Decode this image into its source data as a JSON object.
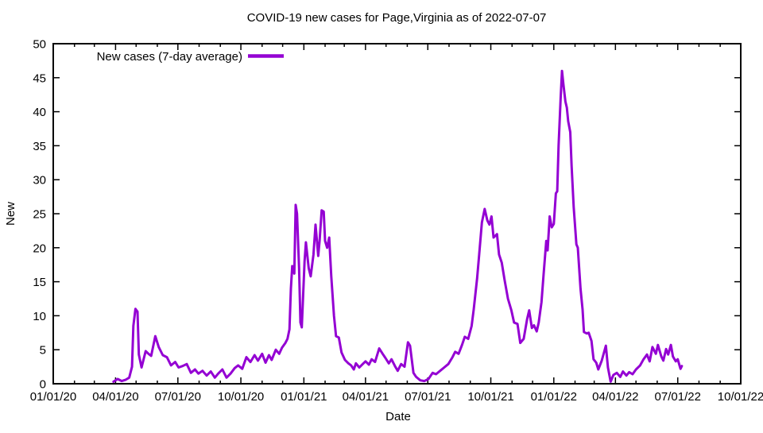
{
  "chart_data": {
    "type": "line",
    "title": "COVID-19 new cases for Page,Virginia as of 2022-07-07",
    "xlabel": "Date",
    "ylabel": "New",
    "x_range": [
      "2020-01-01",
      "2022-10-01"
    ],
    "ylim": [
      0,
      50
    ],
    "yticks": [
      0,
      5,
      10,
      15,
      20,
      25,
      30,
      35,
      40,
      45,
      50
    ],
    "xticks": [
      "01/01/20",
      "04/01/20",
      "07/01/20",
      "10/01/20",
      "01/01/21",
      "04/01/21",
      "07/01/21",
      "10/01/21",
      "01/01/22",
      "04/01/22",
      "07/01/22",
      "10/01/22"
    ],
    "grid": false,
    "legend_position": "top-left-inside",
    "border_color": "#000000",
    "series": [
      {
        "name": "New cases (7-day average)",
        "color": "#9400d3",
        "points": [
          [
            "2020-03-29",
            0.3
          ],
          [
            "2020-04-04",
            0.7
          ],
          [
            "2020-04-10",
            0.4
          ],
          [
            "2020-04-16",
            0.6
          ],
          [
            "2020-04-21",
            0.9
          ],
          [
            "2020-04-25",
            2.5
          ],
          [
            "2020-04-27",
            8.5
          ],
          [
            "2020-04-30",
            11.0
          ],
          [
            "2020-05-03",
            10.6
          ],
          [
            "2020-05-05",
            4.3
          ],
          [
            "2020-05-09",
            2.4
          ],
          [
            "2020-05-15",
            4.8
          ],
          [
            "2020-05-19",
            4.4
          ],
          [
            "2020-05-23",
            4.1
          ],
          [
            "2020-05-29",
            7.0
          ],
          [
            "2020-06-03",
            5.4
          ],
          [
            "2020-06-09",
            4.2
          ],
          [
            "2020-06-15",
            3.9
          ],
          [
            "2020-06-21",
            2.7
          ],
          [
            "2020-06-27",
            3.2
          ],
          [
            "2020-07-02",
            2.4
          ],
          [
            "2020-07-08",
            2.6
          ],
          [
            "2020-07-14",
            2.9
          ],
          [
            "2020-07-20",
            1.6
          ],
          [
            "2020-07-26",
            2.1
          ],
          [
            "2020-07-31",
            1.5
          ],
          [
            "2020-08-06",
            1.9
          ],
          [
            "2020-08-12",
            1.2
          ],
          [
            "2020-08-18",
            1.8
          ],
          [
            "2020-08-24",
            0.9
          ],
          [
            "2020-08-29",
            1.5
          ],
          [
            "2020-09-04",
            2.1
          ],
          [
            "2020-09-10",
            0.9
          ],
          [
            "2020-09-16",
            1.5
          ],
          [
            "2020-09-22",
            2.3
          ],
          [
            "2020-09-27",
            2.7
          ],
          [
            "2020-10-03",
            2.2
          ],
          [
            "2020-10-09",
            3.9
          ],
          [
            "2020-10-15",
            3.2
          ],
          [
            "2020-10-21",
            4.2
          ],
          [
            "2020-10-26",
            3.4
          ],
          [
            "2020-11-01",
            4.4
          ],
          [
            "2020-11-06",
            3.1
          ],
          [
            "2020-11-11",
            4.2
          ],
          [
            "2020-11-15",
            3.5
          ],
          [
            "2020-11-21",
            5.0
          ],
          [
            "2020-11-26",
            4.4
          ],
          [
            "2020-11-30",
            5.3
          ],
          [
            "2020-12-05",
            6.0
          ],
          [
            "2020-12-08",
            6.6
          ],
          [
            "2020-12-11",
            8.0
          ],
          [
            "2020-12-13",
            14.0
          ],
          [
            "2020-12-15",
            17.3
          ],
          [
            "2020-12-18",
            16.2
          ],
          [
            "2020-12-20",
            26.3
          ],
          [
            "2020-12-22",
            25.0
          ],
          [
            "2020-12-25",
            17.0
          ],
          [
            "2020-12-27",
            9.0
          ],
          [
            "2020-12-29",
            8.3
          ],
          [
            "2021-01-02",
            18.0
          ],
          [
            "2021-01-04",
            20.8
          ],
          [
            "2021-01-08",
            17.0
          ],
          [
            "2021-01-11",
            15.8
          ],
          [
            "2021-01-15",
            19.0
          ],
          [
            "2021-01-18",
            23.4
          ],
          [
            "2021-01-22",
            18.8
          ],
          [
            "2021-01-24",
            21.0
          ],
          [
            "2021-01-27",
            25.5
          ],
          [
            "2021-01-30",
            25.3
          ],
          [
            "2021-02-01",
            21.0
          ],
          [
            "2021-02-04",
            20.0
          ],
          [
            "2021-02-07",
            21.5
          ],
          [
            "2021-02-10",
            15.8
          ],
          [
            "2021-02-14",
            10.0
          ],
          [
            "2021-02-17",
            7.0
          ],
          [
            "2021-02-21",
            6.8
          ],
          [
            "2021-02-25",
            4.6
          ],
          [
            "2021-03-02",
            3.5
          ],
          [
            "2021-03-07",
            3.0
          ],
          [
            "2021-03-11",
            2.7
          ],
          [
            "2021-03-15",
            2.1
          ],
          [
            "2021-03-18",
            3.0
          ],
          [
            "2021-03-23",
            2.4
          ],
          [
            "2021-03-28",
            2.9
          ],
          [
            "2021-04-01",
            3.3
          ],
          [
            "2021-04-06",
            2.8
          ],
          [
            "2021-04-10",
            3.6
          ],
          [
            "2021-04-15",
            3.2
          ],
          [
            "2021-04-21",
            5.2
          ],
          [
            "2021-04-26",
            4.4
          ],
          [
            "2021-04-30",
            3.8
          ],
          [
            "2021-05-05",
            3.0
          ],
          [
            "2021-05-09",
            3.6
          ],
          [
            "2021-05-14",
            2.6
          ],
          [
            "2021-05-18",
            1.9
          ],
          [
            "2021-05-23",
            2.9
          ],
          [
            "2021-05-28",
            2.5
          ],
          [
            "2021-06-02",
            6.1
          ],
          [
            "2021-06-05",
            5.6
          ],
          [
            "2021-06-10",
            1.6
          ],
          [
            "2021-06-14",
            1.0
          ],
          [
            "2021-06-20",
            0.5
          ],
          [
            "2021-06-26",
            0.4
          ],
          [
            "2021-07-02",
            0.7
          ],
          [
            "2021-07-08",
            1.6
          ],
          [
            "2021-07-13",
            1.4
          ],
          [
            "2021-07-19",
            1.9
          ],
          [
            "2021-07-25",
            2.4
          ],
          [
            "2021-07-31",
            2.9
          ],
          [
            "2021-08-06",
            3.9
          ],
          [
            "2021-08-10",
            4.7
          ],
          [
            "2021-08-15",
            4.4
          ],
          [
            "2021-08-20",
            5.7
          ],
          [
            "2021-08-24",
            6.9
          ],
          [
            "2021-08-29",
            6.6
          ],
          [
            "2021-09-03",
            8.5
          ],
          [
            "2021-09-06",
            10.9
          ],
          [
            "2021-09-11",
            15.5
          ],
          [
            "2021-09-14",
            19.0
          ],
          [
            "2021-09-18",
            23.7
          ],
          [
            "2021-09-22",
            25.7
          ],
          [
            "2021-09-26",
            24.0
          ],
          [
            "2021-09-29",
            23.4
          ],
          [
            "2021-10-02",
            24.6
          ],
          [
            "2021-10-05",
            21.5
          ],
          [
            "2021-10-10",
            22.0
          ],
          [
            "2021-10-13",
            19.0
          ],
          [
            "2021-10-17",
            17.8
          ],
          [
            "2021-10-21",
            15.3
          ],
          [
            "2021-10-26",
            12.5
          ],
          [
            "2021-10-31",
            10.8
          ],
          [
            "2021-11-04",
            9.0
          ],
          [
            "2021-11-09",
            8.8
          ],
          [
            "2021-11-13",
            6.0
          ],
          [
            "2021-11-18",
            6.6
          ],
          [
            "2021-11-23",
            9.5
          ],
          [
            "2021-11-26",
            10.8
          ],
          [
            "2021-11-30",
            8.2
          ],
          [
            "2021-12-03",
            8.6
          ],
          [
            "2021-12-07",
            7.7
          ],
          [
            "2021-12-10",
            9.0
          ],
          [
            "2021-12-14",
            12.0
          ],
          [
            "2021-12-17",
            16.0
          ],
          [
            "2021-12-21",
            21.0
          ],
          [
            "2021-12-23",
            19.6
          ],
          [
            "2021-12-26",
            24.6
          ],
          [
            "2021-12-29",
            23.0
          ],
          [
            "2022-01-01",
            23.5
          ],
          [
            "2022-01-04",
            28.0
          ],
          [
            "2022-01-06",
            28.3
          ],
          [
            "2022-01-08",
            35.0
          ],
          [
            "2022-01-11",
            42.0
          ],
          [
            "2022-01-13",
            46.0
          ],
          [
            "2022-01-15",
            44.0
          ],
          [
            "2022-01-18",
            41.5
          ],
          [
            "2022-01-20",
            40.6
          ],
          [
            "2022-01-22",
            38.6
          ],
          [
            "2022-01-25",
            37.0
          ],
          [
            "2022-01-27",
            32.0
          ],
          [
            "2022-01-30",
            26.0
          ],
          [
            "2022-02-03",
            20.5
          ],
          [
            "2022-02-05",
            20.0
          ],
          [
            "2022-02-09",
            14.0
          ],
          [
            "2022-02-12",
            10.9
          ],
          [
            "2022-02-14",
            7.6
          ],
          [
            "2022-02-18",
            7.4
          ],
          [
            "2022-02-21",
            7.5
          ],
          [
            "2022-02-25",
            6.3
          ],
          [
            "2022-02-28",
            3.6
          ],
          [
            "2022-03-04",
            3.1
          ],
          [
            "2022-03-07",
            2.1
          ],
          [
            "2022-03-12",
            3.4
          ],
          [
            "2022-03-15",
            4.5
          ],
          [
            "2022-03-18",
            5.6
          ],
          [
            "2022-03-21",
            2.4
          ],
          [
            "2022-03-25",
            0.3
          ],
          [
            "2022-03-29",
            1.3
          ],
          [
            "2022-04-03",
            1.6
          ],
          [
            "2022-04-08",
            1.0
          ],
          [
            "2022-04-12",
            1.8
          ],
          [
            "2022-04-17",
            1.2
          ],
          [
            "2022-04-21",
            1.7
          ],
          [
            "2022-04-26",
            1.4
          ],
          [
            "2022-05-01",
            2.1
          ],
          [
            "2022-05-07",
            2.7
          ],
          [
            "2022-05-12",
            3.6
          ],
          [
            "2022-05-17",
            4.3
          ],
          [
            "2022-05-21",
            3.3
          ],
          [
            "2022-05-25",
            5.4
          ],
          [
            "2022-05-30",
            4.4
          ],
          [
            "2022-06-02",
            5.7
          ],
          [
            "2022-06-07",
            4.0
          ],
          [
            "2022-06-10",
            3.4
          ],
          [
            "2022-06-14",
            5.1
          ],
          [
            "2022-06-17",
            4.3
          ],
          [
            "2022-06-21",
            5.7
          ],
          [
            "2022-06-24",
            4.0
          ],
          [
            "2022-06-28",
            3.3
          ],
          [
            "2022-07-01",
            3.6
          ],
          [
            "2022-07-05",
            2.2
          ],
          [
            "2022-07-07",
            2.6
          ]
        ]
      }
    ]
  }
}
